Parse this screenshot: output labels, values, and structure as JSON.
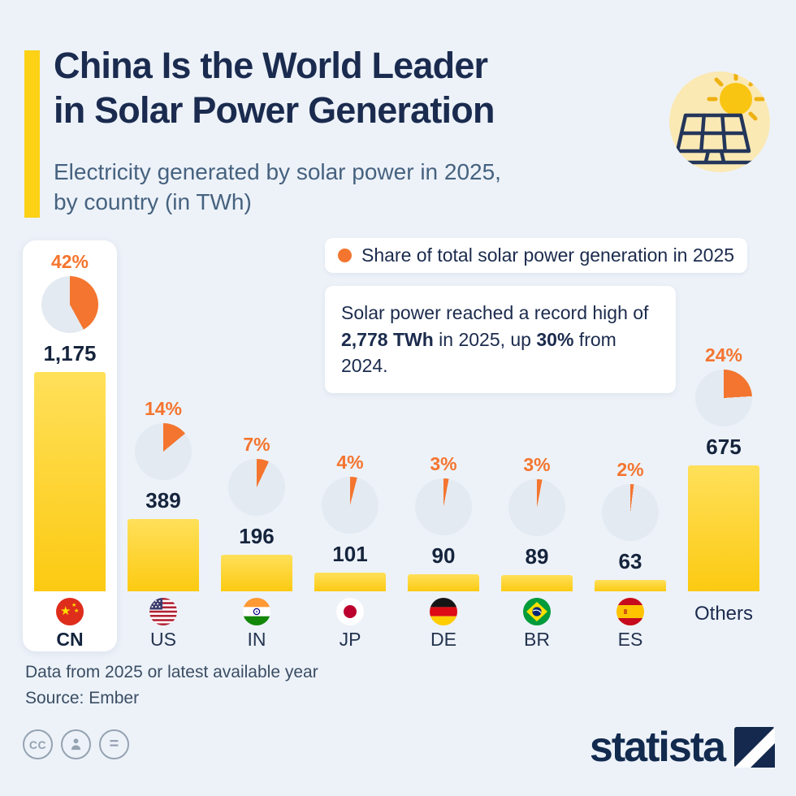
{
  "header": {
    "title_line1": "China Is the World Leader",
    "title_line2": "in Solar Power Generation",
    "subtitle_line1": "Electricity generated by solar power in 2025,",
    "subtitle_line2": "by country (in TWh)"
  },
  "legend": {
    "label": "Share of total solar power generation in 2025"
  },
  "callout": {
    "part1": "Solar power reached a record high of ",
    "bold1": "2,778 TWh",
    "part2": " in 2025, up ",
    "bold2": "30%",
    "part3": " from 2024."
  },
  "chart_data": {
    "type": "bar",
    "title": "Electricity generated by solar power in 2025, by country (in TWh)",
    "categories": [
      "CN",
      "US",
      "IN",
      "JP",
      "DE",
      "BR",
      "ES",
      "Others"
    ],
    "values": [
      1175,
      389,
      196,
      101,
      90,
      89,
      63,
      675
    ],
    "value_labels": [
      "1,175",
      "389",
      "196",
      "101",
      "90",
      "89",
      "63",
      "675"
    ],
    "share_pct": [
      42,
      14,
      7,
      4,
      3,
      3,
      2,
      24
    ],
    "share_labels": [
      "42%",
      "14%",
      "7%",
      "4%",
      "3%",
      "3%",
      "2%",
      "24%"
    ],
    "flags": [
      "cn",
      "us",
      "in",
      "jp",
      "de",
      "br",
      "es",
      null
    ],
    "highlight": "CN",
    "ylabel": "TWh",
    "ylim": [
      0,
      1175
    ],
    "legend_entry": "Share of total solar power generation in 2025",
    "annotation": "Solar power reached a record high of 2,778 TWh in 2025, up 30% from 2024."
  },
  "footer": {
    "note1": "Data from 2025 or latest available year",
    "note2": "Source: Ember",
    "brand": "statista",
    "license_icons": [
      "cc",
      "attribution-person",
      "equals"
    ]
  },
  "colors": {
    "background": "#edf2f9",
    "navy": "#1a2b4f",
    "subtitle_blue": "#46627f",
    "orange": "#f4752f",
    "bar_yellow_top": "#ffe05a",
    "bar_yellow_bottom": "#fcca12",
    "accent_yellow": "#fcd116",
    "pie_bg": "#e4eaf1"
  }
}
